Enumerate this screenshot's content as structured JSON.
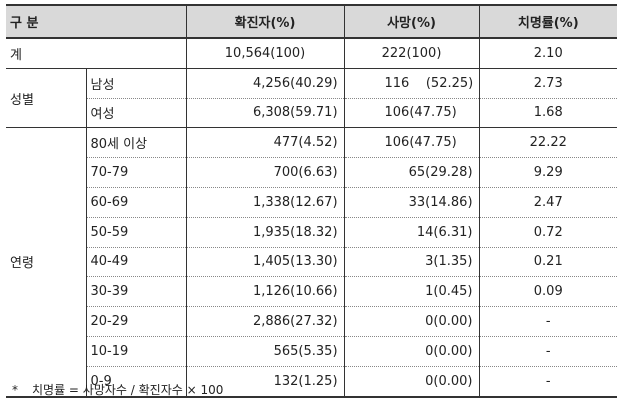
{
  "header": {
    "category": "구 분",
    "confirmed": "확진자(%)",
    "deaths": "사망(%)",
    "fatality": "치명률(%)"
  },
  "total": {
    "label": "계",
    "confirmed": "10,564(100)",
    "deaths": "222(100)",
    "fatality": "2.10"
  },
  "sex": {
    "label": "성별",
    "rows": [
      {
        "label": "남성",
        "confirmed": "4,256(40.29)",
        "deaths": "116    (52.25)",
        "fatality": "2.73"
      },
      {
        "label": "여성",
        "confirmed": "6,308(59.71)",
        "deaths": "106(47.75)",
        "fatality": "1.68"
      }
    ]
  },
  "age": {
    "label": "연령",
    "rows": [
      {
        "label": "80세 이상",
        "confirmed": "477(4.52)",
        "deaths": "106(47.75)",
        "fatality": "22.22"
      },
      {
        "label": "70-79",
        "confirmed": "700(6.63)",
        "deaths": "65(29.28)",
        "fatality": "9.29"
      },
      {
        "label": "60-69",
        "confirmed": "1,338(12.67)",
        "deaths": "33(14.86)",
        "fatality": "2.47"
      },
      {
        "label": "50-59",
        "confirmed": "1,935(18.32)",
        "deaths": "14(6.31)",
        "fatality": "0.72"
      },
      {
        "label": "40-49",
        "confirmed": "1,405(13.30)",
        "deaths": "3(1.35)",
        "fatality": "0.21"
      },
      {
        "label": "30-39",
        "confirmed": "1,126(10.66)",
        "deaths": "1(0.45)",
        "fatality": "0.09"
      },
      {
        "label": "20-29",
        "confirmed": "2,886(27.32)",
        "deaths": "0(0.00)",
        "fatality": "-"
      },
      {
        "label": "10-19",
        "confirmed": "565(5.35)",
        "deaths": "0(0.00)",
        "fatality": "-"
      },
      {
        "label": "0-9",
        "confirmed": "132(1.25)",
        "deaths": "0(0.00)",
        "fatality": "-"
      }
    ]
  },
  "footnote": {
    "marker": "*",
    "text": "치명률 = 사망자수 / 확진자수 × 100"
  }
}
